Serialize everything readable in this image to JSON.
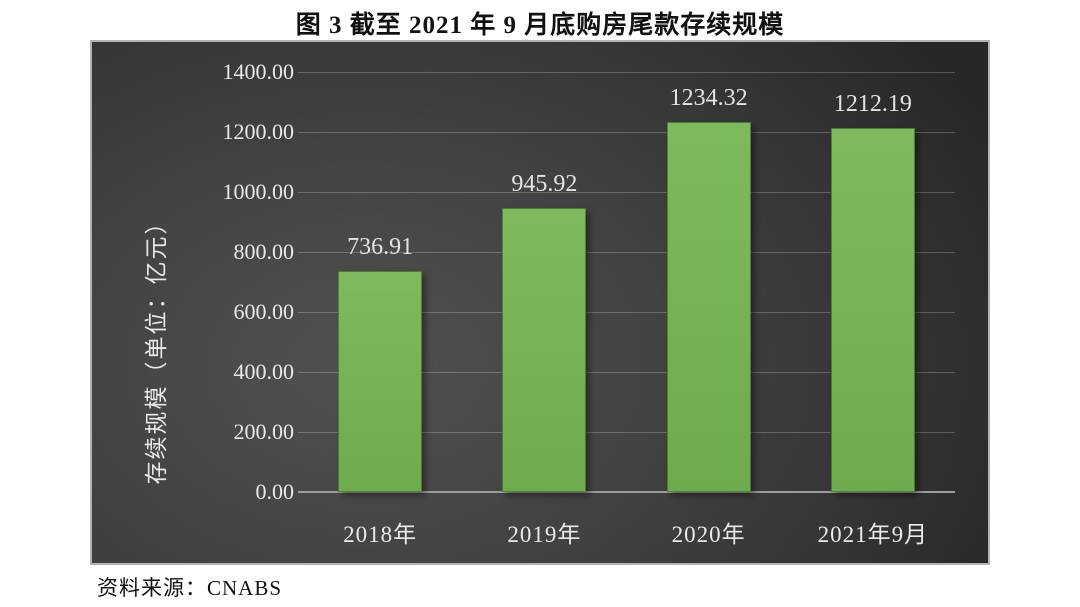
{
  "title": "图 3  截至 2021 年 9 月底购房尾款存续规模",
  "source": "资料来源：CNABS",
  "chart_data": {
    "type": "bar",
    "title": "图 3 截至 2021 年 9 月底购房尾款存续规模",
    "categories": [
      "2018年",
      "2019年",
      "2020年",
      "2021年9月"
    ],
    "values": [
      736.91,
      945.92,
      1234.32,
      1212.19
    ],
    "value_labels": [
      "736.91",
      "945.92",
      "1234.32",
      "1212.19"
    ],
    "xlabel": "",
    "ylabel": "存续规模（单位：亿元）",
    "ylim": [
      0,
      1400
    ],
    "ytick_step": 200,
    "ytick_labels": [
      "1400.00",
      "1200.00",
      "1000.00",
      "800.00",
      "600.00",
      "400.00",
      "200.00",
      "0.00"
    ],
    "grid": true,
    "legend": "none",
    "bar_color": "#74b253",
    "panel_background": "#3d3d3d",
    "text_color": "#e8e8e8",
    "source_label": "CNABS"
  }
}
